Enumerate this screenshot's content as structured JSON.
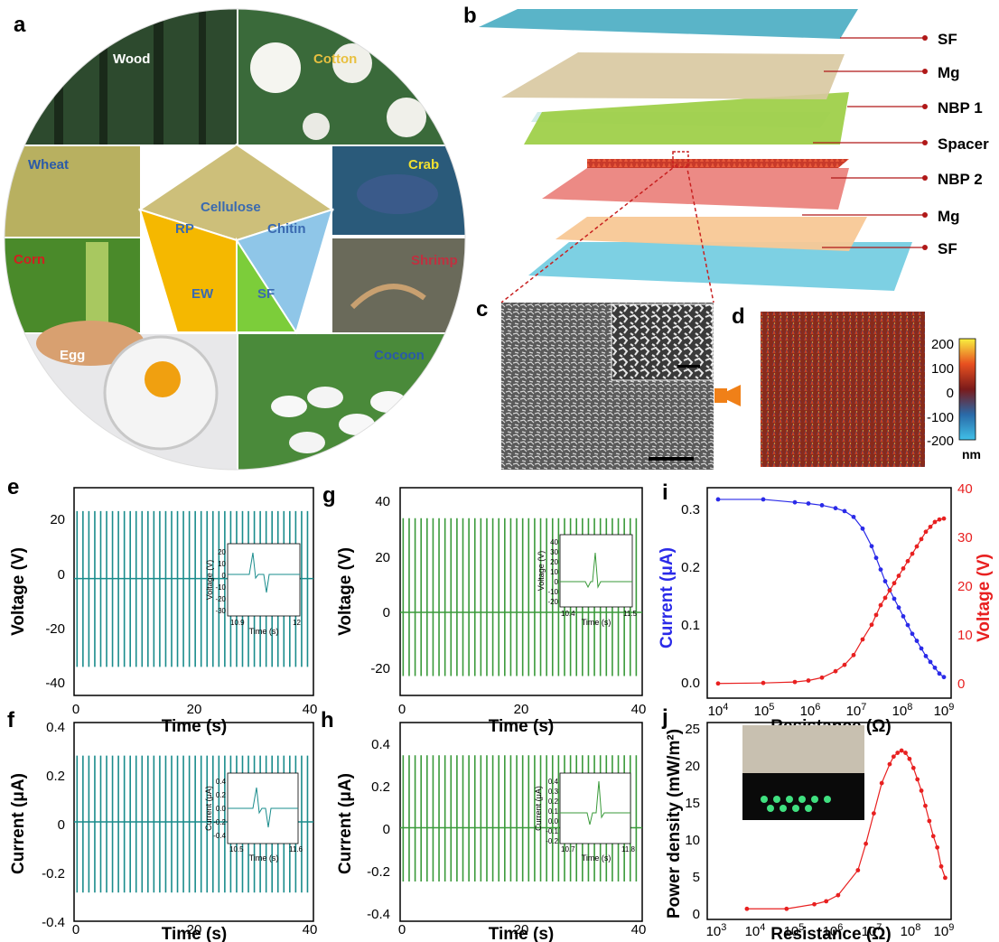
{
  "panel_letters": {
    "a": "a",
    "b": "b",
    "c": "c",
    "d": "d",
    "e": "e",
    "f": "f",
    "g": "g",
    "h": "h",
    "i": "i",
    "j": "j"
  },
  "panel_a": {
    "photos": [
      {
        "label": "Wood",
        "color": "#ffffff"
      },
      {
        "label": "Cotton",
        "color": "#e8c040"
      },
      {
        "label": "Wheat",
        "color": "#2a5aa8"
      },
      {
        "label": "Crab",
        "color": "#f0e030"
      },
      {
        "label": "Corn",
        "color": "#d02020"
      },
      {
        "label": "Shrimp",
        "color": "#c03040"
      },
      {
        "label": "Egg",
        "color": "#ffffff"
      },
      {
        "label": "Cocoon",
        "color": "#2a5aa8"
      }
    ],
    "pentagon": [
      {
        "label": "Cellulose",
        "color": "#cdbf7a"
      },
      {
        "label": "Chitin",
        "color": "#8fc6e8"
      },
      {
        "label": "SF",
        "color": "#7ccd3a"
      },
      {
        "label": "EW",
        "color": "#f5b800"
      },
      {
        "label": "RP",
        "color": "#e4e4e4"
      }
    ],
    "text_color": "#3a6ab0"
  },
  "panel_b": {
    "layers": [
      "SF",
      "Mg",
      "NBP 1",
      "Spacer",
      "NBP 2",
      "Mg",
      "SF"
    ],
    "marker_color": "#b01818"
  },
  "panel_d": {
    "colorbar_ticks": [
      "200",
      "100",
      "0",
      "-100",
      "-200"
    ],
    "unit": "nm"
  },
  "panel_e": {
    "ylabel": "Voltage (V)",
    "xlabel": "Time (s)",
    "xticks": [
      "0",
      "20",
      "40"
    ],
    "yticks": [
      "20",
      "0",
      "-20",
      "-40"
    ],
    "inset": {
      "ylabel": "Voltage (V)",
      "xlabel": "Time (s)",
      "xticks": [
        "10.9",
        "12"
      ],
      "yticks": [
        "20",
        "10",
        "0",
        "-10",
        "-20",
        "-30"
      ]
    }
  },
  "panel_f": {
    "ylabel": "Current (μA)",
    "xlabel": "Time (s)",
    "xticks": [
      "0",
      "20",
      "40"
    ],
    "yticks": [
      "0.4",
      "0.2",
      "0",
      "-0.2",
      "-0.4"
    ],
    "inset": {
      "ylabel": "Current (μA)",
      "xlabel": "Time (s)",
      "xticks": [
        "10.5",
        "11.6"
      ],
      "yticks": [
        "0.4",
        "0.2",
        "0.0",
        "-0.2",
        "-0.4"
      ]
    }
  },
  "panel_g": {
    "ylabel": "Voltage (V)",
    "xlabel": "Time (s)",
    "xticks": [
      "0",
      "20",
      "40"
    ],
    "yticks": [
      "40",
      "20",
      "0",
      "-20"
    ],
    "inset": {
      "ylabel": "Voltage (V)",
      "xlabel": "Time (s)",
      "xticks": [
        "10.4",
        "11.5"
      ],
      "yticks": [
        "40",
        "30",
        "20",
        "10",
        "0",
        "-10",
        "-20"
      ]
    }
  },
  "panel_h": {
    "ylabel": "Current (μA)",
    "xlabel": "Time (s)",
    "xticks": [
      "0",
      "20",
      "40"
    ],
    "yticks": [
      "0.4",
      "0.2",
      "0",
      "-0.2",
      "-0.4"
    ],
    "inset": {
      "ylabel": "Current (μA)",
      "xlabel": "Time (s)",
      "xticks": [
        "10.7",
        "11.8"
      ],
      "yticks": [
        "0.4",
        "0.3",
        "0.2",
        "0.1",
        "0.0",
        "-0.1",
        "-0.2"
      ]
    }
  },
  "panel_i": {
    "ylabel_left": "Current (μA)",
    "ylabel_right": "Voltage (V)",
    "xlabel": "Resistance (Ω)",
    "yticks_left": [
      "0.3",
      "0.2",
      "0.1",
      "0.0"
    ],
    "yticks_right": [
      "40",
      "30",
      "20",
      "10",
      "0"
    ],
    "xticks": [
      {
        "b": "10",
        "e": "4"
      },
      {
        "b": "10",
        "e": "5"
      },
      {
        "b": "10",
        "e": "6"
      },
      {
        "b": "10",
        "e": "7"
      },
      {
        "b": "10",
        "e": "8"
      },
      {
        "b": "10",
        "e": "9"
      }
    ]
  },
  "panel_j": {
    "ylabel": "Power density (mW/m²)",
    "xlabel": "Resistance (Ω)",
    "yticks": [
      "25",
      "20",
      "15",
      "10",
      "5",
      "0"
    ],
    "xticks": [
      {
        "b": "10",
        "e": "3"
      },
      {
        "b": "10",
        "e": "4"
      },
      {
        "b": "10",
        "e": "5"
      },
      {
        "b": "10",
        "e": "6"
      },
      {
        "b": "10",
        "e": "7"
      },
      {
        "b": "10",
        "e": "8"
      },
      {
        "b": "10",
        "e": "9"
      }
    ]
  },
  "colors": {
    "teal": "#1a8c8c",
    "green": "#3a9a3a",
    "blue": "#2a2ae8",
    "red": "#e82020"
  },
  "chart_data": [
    {
      "panel": "e",
      "type": "line",
      "xlabel": "Time (s)",
      "ylabel": "Voltage (V)",
      "xlim": [
        0,
        40
      ],
      "ylim": [
        -45,
        35
      ],
      "series": [
        {
          "pulses": 40,
          "peak_pos": 26,
          "peak_neg": -34
        }
      ],
      "inset": {
        "xlim": [
          10.9,
          12
        ],
        "ylim": [
          -30,
          20
        ]
      }
    },
    {
      "panel": "f",
      "type": "line",
      "xlabel": "Time (s)",
      "ylabel": "Current (μA)",
      "xlim": [
        0,
        40
      ],
      "ylim": [
        -0.45,
        0.45
      ],
      "series": [
        {
          "pulses": 40,
          "peak_pos": 0.3,
          "peak_neg": -0.32
        }
      ],
      "inset": {
        "xlim": [
          10.5,
          11.6
        ],
        "ylim": [
          -0.4,
          0.4
        ]
      }
    },
    {
      "panel": "g",
      "type": "line",
      "xlabel": "Time (s)",
      "ylabel": "Voltage (V)",
      "xlim": [
        0,
        40
      ],
      "ylim": [
        -30,
        45
      ],
      "series": [
        {
          "pulses": 40,
          "peak_pos": 34,
          "peak_neg": -23
        }
      ],
      "inset": {
        "xlim": [
          10.4,
          11.5
        ],
        "ylim": [
          -20,
          40
        ]
      }
    },
    {
      "panel": "h",
      "type": "line",
      "xlabel": "Time (s)",
      "ylabel": "Current (μA)",
      "xlim": [
        0,
        40
      ],
      "ylim": [
        -0.4,
        0.45
      ],
      "series": [
        {
          "pulses": 40,
          "peak_pos": 0.31,
          "peak_neg": -0.23
        }
      ],
      "inset": {
        "xlim": [
          10.7,
          11.8
        ],
        "ylim": [
          -0.2,
          0.4
        ]
      }
    },
    {
      "panel": "i",
      "type": "line",
      "xlabel": "Resistance (Ω)",
      "xscale": "log",
      "xlim": [
        4,
        9
      ],
      "series": [
        {
          "axis": "left",
          "ylim": [
            -0.02,
            0.34
          ],
          "x": [
            4,
            5,
            5.7,
            6,
            6.3,
            6.6,
            6.8,
            7,
            7.2,
            7.4,
            7.5,
            7.6,
            7.7,
            7.8,
            7.9,
            8,
            8.1,
            8.2,
            8.3,
            8.4,
            8.5,
            8.6,
            8.7,
            8.8,
            8.9,
            9
          ],
          "y": [
            0.32,
            0.32,
            0.315,
            0.313,
            0.31,
            0.305,
            0.3,
            0.29,
            0.27,
            0.24,
            0.22,
            0.2,
            0.18,
            0.165,
            0.15,
            0.135,
            0.12,
            0.105,
            0.09,
            0.078,
            0.065,
            0.052,
            0.042,
            0.032,
            0.022,
            0.016
          ]
        },
        {
          "axis": "right",
          "ylim": [
            -3,
            40
          ],
          "x": [
            4,
            5,
            5.7,
            6,
            6.3,
            6.6,
            6.8,
            7,
            7.2,
            7.4,
            7.5,
            7.6,
            7.7,
            7.8,
            7.9,
            8,
            8.1,
            8.2,
            8.3,
            8.4,
            8.5,
            8.6,
            8.7,
            8.8,
            8.9,
            9
          ],
          "y": [
            0,
            0.1,
            0.3,
            0.6,
            1.2,
            2.5,
            3.8,
            5.8,
            9,
            12,
            14,
            16,
            17.5,
            19,
            20.5,
            22,
            23.5,
            25,
            26.5,
            28,
            29.5,
            31,
            32,
            33,
            33.5,
            33.7
          ]
        }
      ]
    },
    {
      "panel": "j",
      "type": "line",
      "xlabel": "Resistance (Ω)",
      "ylabel": "Power density (mW/m²)",
      "xscale": "log",
      "xlim": [
        3,
        9.15
      ],
      "ylim": [
        -1,
        25
      ],
      "series": [
        {
          "x": [
            4,
            5,
            5.7,
            6,
            6.3,
            6.8,
            7,
            7.2,
            7.4,
            7.6,
            7.7,
            7.8,
            7.9,
            8,
            8.1,
            8.2,
            8.3,
            8.4,
            8.5,
            8.6,
            8.7,
            8.8,
            8.9,
            9
          ],
          "y": [
            0.4,
            0.4,
            1,
            1.4,
            2.2,
            5.5,
            9,
            13,
            17,
            19.5,
            20.5,
            21,
            21.3,
            21,
            20.2,
            19,
            17.5,
            16,
            14,
            12,
            10,
            8.5,
            6,
            4.5
          ]
        }
      ]
    }
  ]
}
